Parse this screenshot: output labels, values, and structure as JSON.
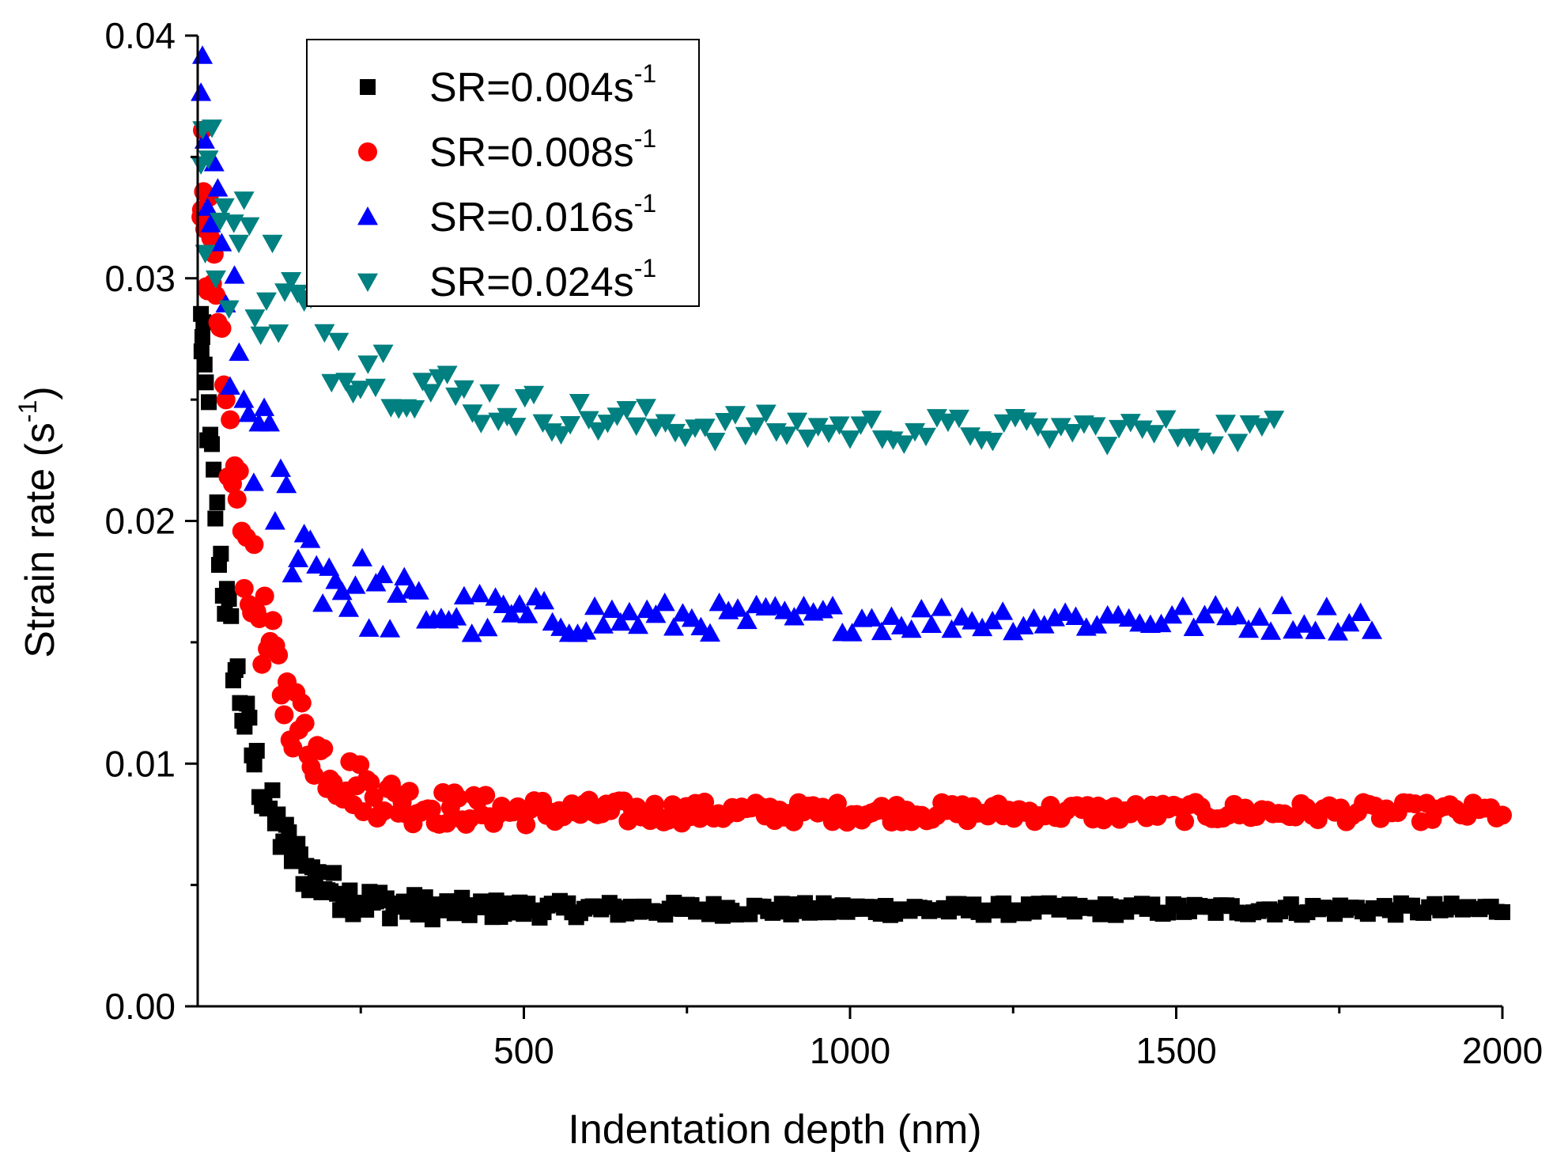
{
  "chart_data": {
    "type": "scatter",
    "title": "",
    "xlabel": "Indentation depth (nm)",
    "ylabel_main": "Strain rate (s",
    "ylabel_sup": "-1",
    "ylabel_tail": ")",
    "xlim": [
      0,
      2000
    ],
    "ylim": [
      0,
      0.04
    ],
    "xticks": [
      500,
      1000,
      1500,
      2000
    ],
    "xtick_labels": [
      "500",
      "1000",
      "1500",
      "2000"
    ],
    "yticks": [
      0,
      0.01,
      0.02,
      0.03,
      0.04
    ],
    "ytick_labels": [
      "0.00",
      "0.01",
      "0.02",
      "0.03",
      "0.04"
    ],
    "legend_position": "top-left",
    "series": [
      {
        "name": "SR=0.004s",
        "sup": "-1",
        "marker": "square",
        "color": "#000000",
        "x_start": 5,
        "x_end": 2000,
        "count": 310,
        "asymptote": 0.004,
        "initial": 0.028,
        "decay": 60,
        "scatter": 0.00025
      },
      {
        "name": "SR=0.008s",
        "sup": "-1",
        "marker": "circle",
        "color": "#ff0000",
        "x_start": 5,
        "x_end": 2000,
        "count": 300,
        "asymptote": 0.008,
        "initial": 0.035,
        "decay": 75,
        "scatter": 0.0004
      },
      {
        "name": "SR=0.016s",
        "sup": "-1",
        "marker": "triangle-up",
        "color": "#0000ff",
        "x_start": 5,
        "x_end": 1800,
        "count": 140,
        "asymptote": 0.016,
        "initial": 0.036,
        "decay": 85,
        "scatter": 0.0006
      },
      {
        "name": "SR=0.024s",
        "sup": "-1",
        "marker": "triangle-down",
        "color": "#008080",
        "x_start": 5,
        "x_end": 1650,
        "count": 120,
        "asymptote": 0.0237,
        "initial": 0.034,
        "decay": 200,
        "scatter": 0.0006
      }
    ]
  }
}
